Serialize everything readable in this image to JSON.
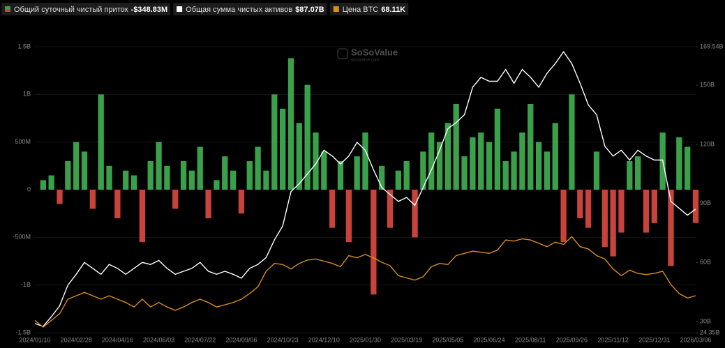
{
  "chart_data": {
    "type": "bar-line",
    "categories": [
      "2024/01/10",
      null,
      null,
      null,
      null,
      "2024/02/28",
      null,
      null,
      null,
      null,
      "2024/04/16",
      null,
      null,
      null,
      null,
      "2024/06/03",
      null,
      null,
      null,
      null,
      "2024/07/22",
      null,
      null,
      null,
      null,
      "2024/09/06",
      null,
      null,
      null,
      null,
      "2024/10/23",
      null,
      null,
      null,
      null,
      "2024/12/10",
      null,
      null,
      null,
      null,
      "2025/01/30",
      null,
      null,
      null,
      null,
      "2025/03/19",
      null,
      null,
      null,
      null,
      "2025/05/05",
      null,
      null,
      null,
      null,
      "2025/06/24",
      null,
      null,
      null,
      null,
      "2025/08/11",
      null,
      null,
      null,
      null,
      "2025/09/26",
      null,
      null,
      null,
      null,
      "2025/11/12",
      null,
      null,
      null,
      null,
      "2025/12/31",
      null,
      null,
      null,
      null,
      "2026/03/06"
    ],
    "series": [
      {
        "name": "Общий суточный чистый приток",
        "summary": "-$348.83M",
        "type": "bar",
        "axis": "y",
        "color": "#3aa14a",
        "negative_color": "#c8433b",
        "values": [
          0,
          100,
          150,
          -150,
          300,
          500,
          400,
          -200,
          1000,
          250,
          -300,
          200,
          150,
          -550,
          300,
          500,
          250,
          -200,
          300,
          200,
          450,
          -300,
          100,
          350,
          200,
          -250,
          300,
          450,
          200,
          1000,
          850,
          1380,
          700,
          1100,
          600,
          400,
          -400,
          300,
          -550,
          350,
          600,
          -1100,
          250,
          -400,
          200,
          300,
          -500,
          400,
          600,
          500,
          700,
          900,
          350,
          550,
          600,
          500,
          850,
          300,
          400,
          600,
          900,
          500,
          400,
          700,
          -550,
          1000,
          -300,
          -400,
          400,
          -600,
          -700,
          -450,
          300,
          350,
          -450,
          -350,
          600,
          -800,
          550,
          450,
          -348.83
        ]
      },
      {
        "name": "Общая сумма чистых активов",
        "summary": "$87.07B",
        "type": "line",
        "axis": "y2",
        "color": "#ffffff",
        "values": [
          29,
          27.5,
          32.5,
          38,
          48.5,
          54,
          60,
          57,
          54,
          59,
          57,
          54,
          57,
          60,
          59,
          61,
          57,
          54,
          55.5,
          57,
          60,
          55.5,
          54,
          55.5,
          54,
          52,
          57,
          59,
          62.5,
          71.5,
          78.5,
          96,
          100,
          105,
          110,
          117,
          114,
          110,
          114,
          121,
          117,
          107,
          98,
          94.5,
          91,
          93,
          89,
          98,
          107,
          117,
          128,
          131,
          135,
          149,
          154,
          152,
          152,
          158,
          151,
          158,
          154,
          149,
          156,
          161,
          167,
          161,
          151,
          140,
          135,
          119,
          114,
          117,
          112,
          117,
          114,
          112,
          112,
          91,
          87.5,
          84,
          87.07
        ]
      },
      {
        "name": "Цена BTC",
        "summary": "68.11K",
        "type": "line",
        "axis": "y3",
        "color": "#d98e1c",
        "values": [
          46,
          40,
          46,
          52,
          65,
          68,
          71,
          68,
          65,
          68,
          65,
          62,
          58,
          65,
          58,
          62,
          58,
          55,
          58,
          62,
          65,
          62,
          58,
          60,
          62,
          65,
          70,
          76,
          90,
          97,
          96,
          92,
          97,
          100,
          101,
          99,
          97,
          94,
          104,
          102,
          105,
          102,
          98,
          95,
          86,
          84,
          82,
          85,
          94,
          97,
          96,
          104,
          106,
          108,
          107,
          106,
          109,
          118,
          117,
          119,
          118,
          115,
          112,
          116,
          114,
          121,
          112,
          110,
          104,
          101,
          92,
          86,
          91,
          88,
          87,
          88,
          90,
          78,
          70,
          66,
          68.11
        ]
      }
    ],
    "ylim": [
      -1500,
      1500
    ],
    "yticks": [
      {
        "value": -1500,
        "label": "-1.5B"
      },
      {
        "value": -1000,
        "label": "-1B"
      },
      {
        "value": -500,
        "label": "-500M"
      },
      0,
      {
        "value": 500,
        "label": "500M"
      },
      {
        "value": 1000,
        "label": "1B"
      },
      {
        "value": 1500,
        "label": "1.5B"
      }
    ],
    "y2lim": [
      24.35,
      169.54
    ],
    "y2ticks": [
      {
        "value": 24.35,
        "label": "24.35B"
      },
      {
        "value": 30,
        "label": "30B"
      },
      {
        "value": 60,
        "label": "60B"
      },
      {
        "value": 90,
        "label": "90B"
      },
      {
        "value": 120,
        "label": "120B"
      },
      {
        "value": 150,
        "label": "150B"
      },
      {
        "value": 169.54,
        "label": "169.54B"
      }
    ],
    "y3lim": [
      35,
      291
    ],
    "grid": true
  },
  "watermark": {
    "name": "SoSoValue",
    "url": "sosovalue.com"
  }
}
